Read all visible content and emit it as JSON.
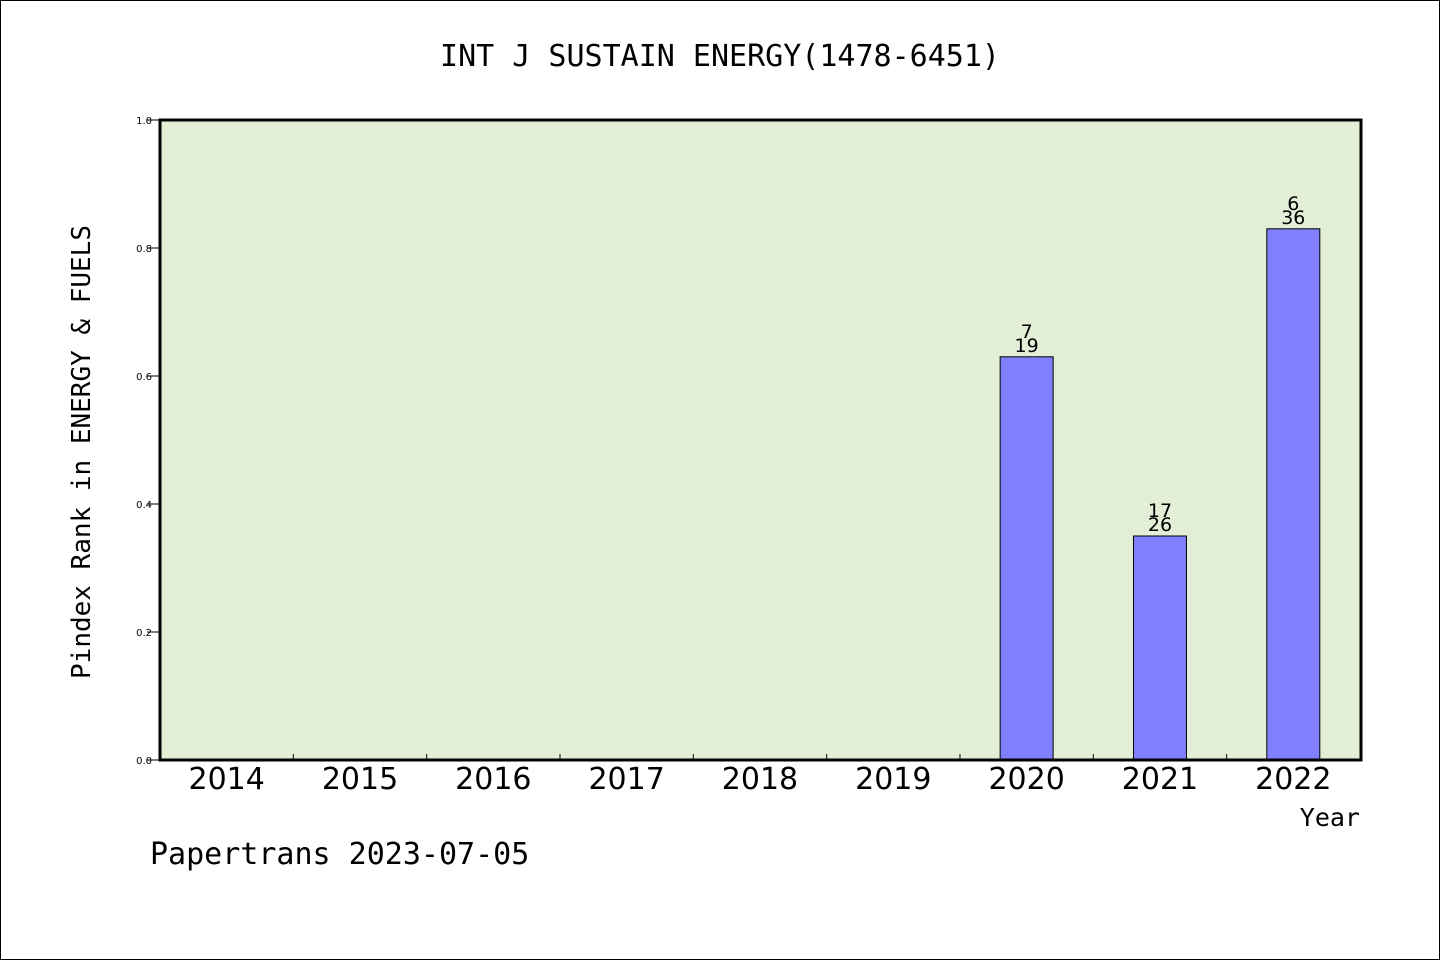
{
  "chart_data": {
    "type": "bar",
    "title": "INT J SUSTAIN ENERGY(1478-6451)",
    "xlabel": "Year",
    "ylabel": "Pindex Rank in ENERGY & FUELS",
    "ylim": [
      0,
      1.0
    ],
    "yticks": [
      "0.0",
      "0.2",
      "0.4",
      "0.6",
      "0.8",
      "1.0"
    ],
    "categories": [
      "2014",
      "2015",
      "2016",
      "2017",
      "2018",
      "2019",
      "2020",
      "2021",
      "2022"
    ],
    "values": [
      null,
      null,
      null,
      null,
      null,
      null,
      0.63,
      0.35,
      0.83
    ],
    "bar_labels": [
      null,
      null,
      null,
      null,
      null,
      null,
      {
        "top": "7",
        "bottom": "19"
      },
      {
        "top": "17",
        "bottom": "26"
      },
      {
        "top": "6",
        "bottom": "36"
      }
    ],
    "grid": false,
    "colors": {
      "plot_background": "#e2efd6",
      "bar_fill": "#8080ff",
      "axis": "#000000"
    }
  },
  "footer": {
    "credit": "Papertrans 2023-07-05"
  }
}
